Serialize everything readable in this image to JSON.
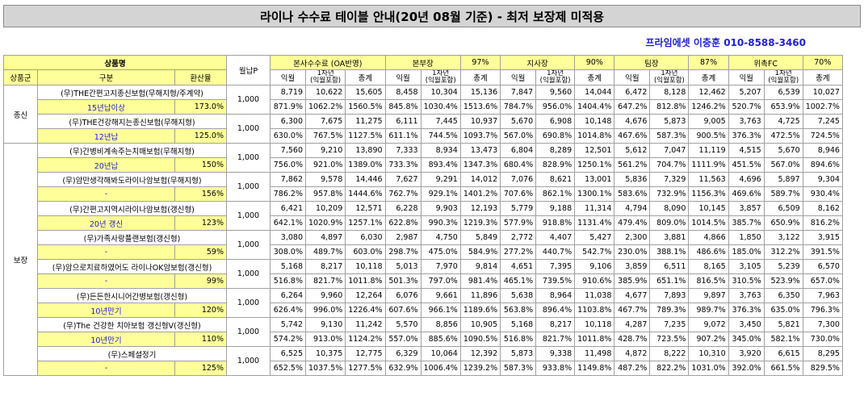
{
  "title": "라이나 수수료 테이블 안내(20년 08월 기준) - 최저 보장제 미적용",
  "contact": "프라임에셋 이충훈 010-8588-3460",
  "header": {
    "product": "상품명",
    "monthly": "월납P",
    "groups": [
      {
        "name": "본사수수료 (OA반영)",
        "pct": ""
      },
      {
        "name": "본부장",
        "pct": "97%"
      },
      {
        "name": "지사장",
        "pct": "90%"
      },
      {
        "name": "팀장",
        "pct": "87%"
      },
      {
        "name": "위촉FC",
        "pct": "70%"
      }
    ],
    "category": "상품군",
    "division": "구분",
    "conversion": "환산율",
    "sub_cols": [
      "익월",
      "1차년\n(익월포함)",
      "총계"
    ]
  },
  "categories": [
    {
      "name": "종신",
      "rowspan": 4
    },
    {
      "name": "보장",
      "rowspan": 18
    }
  ],
  "products": [
    {
      "name": "(무)THE간편고지종신보험(무해지형/주계약)",
      "sub": "15년납이상",
      "rate": "173.0%",
      "monthly": "1,000",
      "nums": [
        "8,719",
        "10,622",
        "15,605",
        "8,458",
        "10,304",
        "15,136",
        "7,847",
        "9,560",
        "14,044",
        "6,472",
        "8,128",
        "12,462",
        "5,207",
        "6,539",
        "10,027"
      ],
      "pcts": [
        "871.9%",
        "1062.2%",
        "1560.5%",
        "845.8%",
        "1030.4%",
        "1513.6%",
        "784.7%",
        "956.0%",
        "1404.4%",
        "647.2%",
        "812.8%",
        "1246.2%",
        "520.7%",
        "653.9%",
        "1002.7%"
      ]
    },
    {
      "name": "(무)THE건강해지는종신보험(무해지형)",
      "sub": "12년납",
      "rate": "125.0%",
      "monthly": "1,000",
      "nums": [
        "6,300",
        "7,675",
        "11,275",
        "6,111",
        "7,445",
        "10,937",
        "5,670",
        "6,908",
        "10,148",
        "4,676",
        "5,873",
        "9,005",
        "3,763",
        "4,725",
        "7,245"
      ],
      "pcts": [
        "630.0%",
        "767.5%",
        "1127.5%",
        "611.1%",
        "744.5%",
        "1093.7%",
        "567.0%",
        "690.8%",
        "1014.8%",
        "467.6%",
        "587.3%",
        "900.5%",
        "376.3%",
        "472.5%",
        "724.5%"
      ]
    },
    {
      "name": "(무)간병비계속주는치매보험(무해지형)",
      "sub": "20년납",
      "rate": "150%",
      "monthly": "1,000",
      "nums": [
        "7,560",
        "9,210",
        "13,890",
        "7,333",
        "8,934",
        "13,473",
        "6,804",
        "8,289",
        "12,501",
        "5,612",
        "7,047",
        "11,119",
        "4,515",
        "5,670",
        "8,946"
      ],
      "pcts": [
        "756.0%",
        "921.0%",
        "1389.0%",
        "733.3%",
        "893.4%",
        "1347.3%",
        "680.4%",
        "828.9%",
        "1250.1%",
        "561.2%",
        "704.7%",
        "1111.9%",
        "451.5%",
        "567.0%",
        "894.6%"
      ]
    },
    {
      "name": "(무)암만생각해봐도라이나암보험(무해지형)",
      "sub": "-",
      "rate": "156%",
      "monthly": "1,000",
      "nums": [
        "7,862",
        "9,578",
        "14,446",
        "7,627",
        "9,291",
        "14,012",
        "7,076",
        "8,621",
        "13,001",
        "5,836",
        "7,329",
        "11,563",
        "4,696",
        "5,897",
        "9,304"
      ],
      "pcts": [
        "786.2%",
        "957.8%",
        "1444.6%",
        "762.7%",
        "929.1%",
        "1401.2%",
        "707.6%",
        "862.1%",
        "1300.1%",
        "583.6%",
        "732.9%",
        "1156.3%",
        "469.6%",
        "589.7%",
        "930.4%"
      ]
    },
    {
      "name": "(무)간편고지역시라이나암보험(갱신형)",
      "sub": "20년 갱신",
      "rate": "123%",
      "monthly": "1,000",
      "nums": [
        "6,421",
        "10,209",
        "12,571",
        "6,228",
        "9,903",
        "12,193",
        "5,779",
        "9,188",
        "11,314",
        "4,794",
        "8,090",
        "10,145",
        "3,857",
        "6,509",
        "8,162"
      ],
      "pcts": [
        "642.1%",
        "1020.9%",
        "1257.1%",
        "622.8%",
        "990.3%",
        "1219.3%",
        "577.9%",
        "918.8%",
        "1131.4%",
        "479.4%",
        "809.0%",
        "1014.5%",
        "385.7%",
        "650.9%",
        "816.2%"
      ]
    },
    {
      "name": "(무)가족사랑플랜보험(갱신형)",
      "sub": "-",
      "rate": "59%",
      "monthly": "1,000",
      "nums": [
        "3,080",
        "4,897",
        "6,030",
        "2,987",
        "4,750",
        "5,849",
        "2,772",
        "4,407",
        "5,427",
        "2,300",
        "3,881",
        "4,866",
        "1,850",
        "3,122",
        "3,915"
      ],
      "pcts": [
        "308.0%",
        "489.7%",
        "603.0%",
        "298.7%",
        "475.0%",
        "584.9%",
        "277.2%",
        "440.7%",
        "542.7%",
        "230.0%",
        "388.1%",
        "486.6%",
        "185.0%",
        "312.2%",
        "391.5%"
      ]
    },
    {
      "name": "(무)암으로치료하였어도 라이나OK암보험(갱신형)",
      "sub": "-",
      "rate": "99%",
      "monthly": "1,000",
      "nums": [
        "5,168",
        "8,217",
        "10,118",
        "5,013",
        "7,970",
        "9,814",
        "4,651",
        "7,395",
        "9,106",
        "3,859",
        "6,511",
        "8,165",
        "3,105",
        "5,239",
        "6,570"
      ],
      "pcts": [
        "516.8%",
        "821.7%",
        "1011.8%",
        "501.3%",
        "797.0%",
        "981.4%",
        "465.1%",
        "739.5%",
        "910.6%",
        "385.9%",
        "651.1%",
        "816.5%",
        "310.5%",
        "523.9%",
        "657.0%"
      ]
    },
    {
      "name": "(무)든든한시니어간병보험(갱신형)",
      "sub": "10년만기",
      "rate": "120%",
      "monthly": "1,000",
      "nums": [
        "6,264",
        "9,960",
        "12,264",
        "6,076",
        "9,661",
        "11,896",
        "5,638",
        "8,964",
        "11,038",
        "4,677",
        "7,893",
        "9,897",
        "3,763",
        "6,350",
        "7,963"
      ],
      "pcts": [
        "626.4%",
        "996.0%",
        "1226.4%",
        "607.6%",
        "966.1%",
        "1189.6%",
        "563.8%",
        "896.4%",
        "1103.8%",
        "467.7%",
        "789.3%",
        "989.7%",
        "376.3%",
        "635.0%",
        "796.3%"
      ]
    },
    {
      "name": "(무)The 건강한 치아보험 갱신형V(갱신형)",
      "sub": "10년만기",
      "rate": "110%",
      "monthly": "1,000",
      "nums": [
        "5,742",
        "9,130",
        "11,242",
        "5,570",
        "8,856",
        "10,905",
        "5,168",
        "8,217",
        "10,118",
        "4,287",
        "7,235",
        "9,072",
        "3,450",
        "5,821",
        "7,300"
      ],
      "pcts": [
        "574.2%",
        "913.0%",
        "1124.2%",
        "557.0%",
        "885.6%",
        "1090.5%",
        "516.8%",
        "821.7%",
        "1011.8%",
        "428.7%",
        "723.5%",
        "907.2%",
        "345.0%",
        "582.1%",
        "730.0%"
      ]
    },
    {
      "name": "(무)스페셜정기",
      "sub": "-",
      "rate": "125%",
      "monthly": "1,000",
      "nums": [
        "6,525",
        "10,375",
        "12,775",
        "6,329",
        "10,064",
        "12,392",
        "5,873",
        "9,338",
        "11,498",
        "4,872",
        "8,222",
        "10,310",
        "3,920",
        "6,615",
        "8,295"
      ],
      "pcts": [
        "652.5%",
        "1037.5%",
        "1277.5%",
        "632.9%",
        "1006.4%",
        "1239.2%",
        "587.3%",
        "933.8%",
        "1149.8%",
        "487.2%",
        "822.2%",
        "1031.0%",
        "392.0%",
        "661.5%",
        "829.5%"
      ]
    }
  ]
}
